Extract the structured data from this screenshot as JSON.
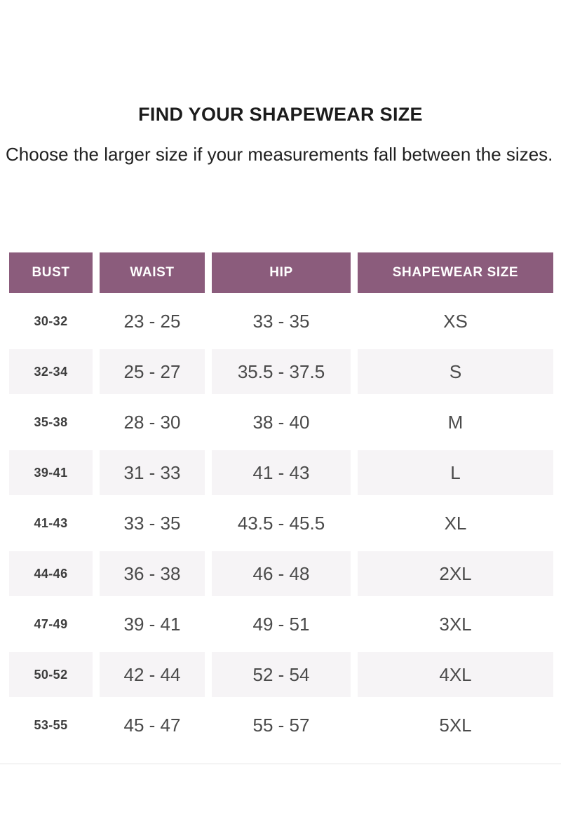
{
  "page": {
    "title": "FIND YOUR SHAPEWEAR SIZE",
    "subtitle": "Choose the larger size if your measurements fall between the sizes."
  },
  "colors": {
    "header_bg": "#8b5c7c",
    "header_text": "#ffffff",
    "striped_row_bg": "#f6f4f6",
    "body_text": "#4a4a4a",
    "bust_text": "#3c3c3c",
    "title_text": "#1c1c1c"
  },
  "size_chart": {
    "columns": [
      "BUST",
      "WAIST",
      "HIP",
      "SHAPEWEAR SIZE"
    ],
    "rows": [
      {
        "bust": "30-32",
        "waist": "23 - 25",
        "hip": "33 - 35",
        "size": "XS"
      },
      {
        "bust": "32-34",
        "waist": "25 - 27",
        "hip": "35.5 - 37.5",
        "size": "S"
      },
      {
        "bust": "35-38",
        "waist": "28 - 30",
        "hip": "38 - 40",
        "size": "M"
      },
      {
        "bust": "39-41",
        "waist": "31 - 33",
        "hip": "41 - 43",
        "size": "L"
      },
      {
        "bust": "41-43",
        "waist": "33 - 35",
        "hip": "43.5 - 45.5",
        "size": "XL"
      },
      {
        "bust": "44-46",
        "waist": "36 - 38",
        "hip": "46 - 48",
        "size": "2XL"
      },
      {
        "bust": "47-49",
        "waist": "39 - 41",
        "hip": "49 - 51",
        "size": "3XL"
      },
      {
        "bust": "50-52",
        "waist": "42 - 44",
        "hip": "52 - 54",
        "size": "4XL"
      },
      {
        "bust": "53-55",
        "waist": "45 - 47",
        "hip": "55 - 57",
        "size": "5XL"
      }
    ]
  }
}
